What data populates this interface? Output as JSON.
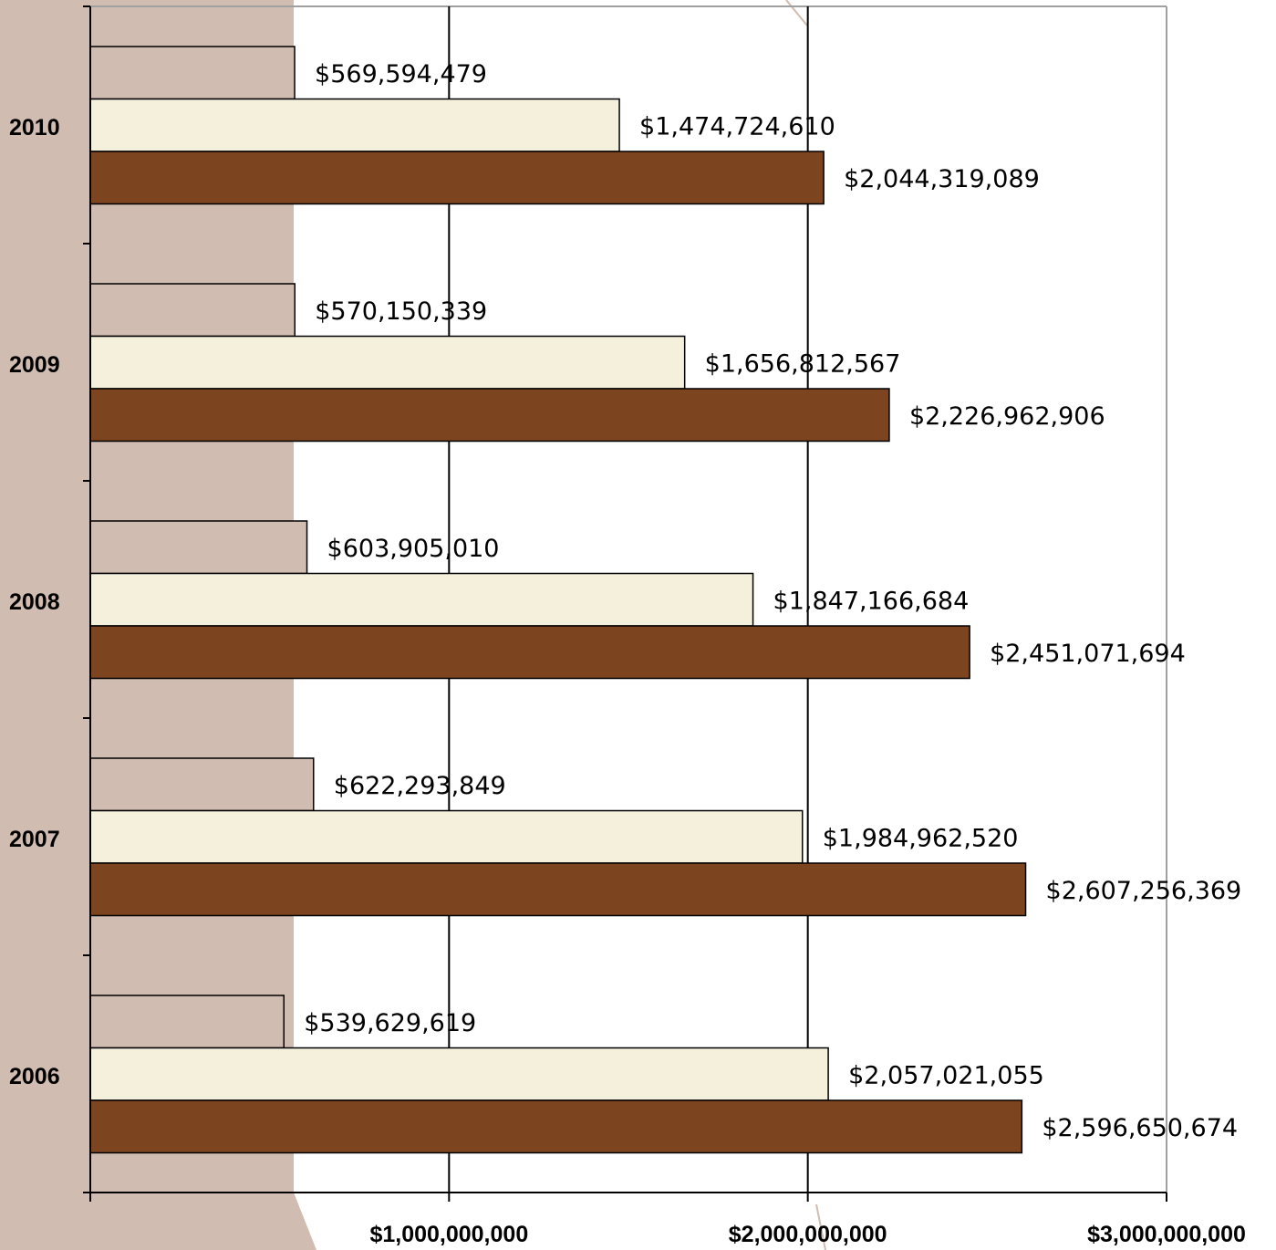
{
  "chart_data": {
    "type": "bar",
    "orientation": "horizontal",
    "categories": [
      "2010",
      "2009",
      "2008",
      "2007",
      "2006"
    ],
    "series": [
      {
        "color": "#D0BCB0",
        "values": [
          569594479,
          570150339,
          603905010,
          622293849,
          539629619
        ]
      },
      {
        "color": "#F5F0DC",
        "values": [
          1474724610,
          1656812567,
          1847166684,
          1984962520,
          2057021055
        ]
      },
      {
        "color": "#7C4520",
        "values": [
          2044319089,
          2226962906,
          2451071694,
          2607256369,
          2596650674
        ]
      }
    ],
    "data_labels": [
      [
        "$569,594,479",
        "$1,474,724,610",
        "$2,044,319,089"
      ],
      [
        "$570,150,339",
        "$1,656,812,567",
        "$2,226,962,906"
      ],
      [
        "$603,905,010",
        "$1,847,166,684",
        "$2,451,071,694"
      ],
      [
        "$622,293,849",
        "$1,984,962,520",
        "$2,607,256,369"
      ],
      [
        "$539,629,619",
        "$2,057,021,055",
        "$2,596,650,674"
      ]
    ],
    "xticks": [
      {
        "value": 1000000000,
        "label": "$1,000,000,000"
      },
      {
        "value": 2000000000,
        "label": "$2,000,000,000"
      },
      {
        "value": 3000000000,
        "label": "$3,000,000,000"
      }
    ],
    "xlim": [
      0,
      3000000000
    ],
    "title": "",
    "xlabel": "",
    "ylabel": "",
    "grid": "vertical major gridlines",
    "legend": "none"
  },
  "colors": {
    "background_accent": "#D0BCB0",
    "gridline": "#000000"
  }
}
